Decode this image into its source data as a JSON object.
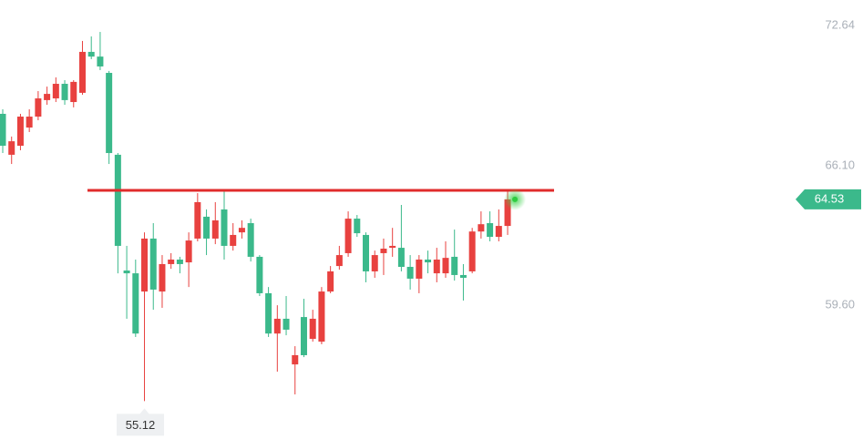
{
  "chart_data": {
    "type": "candlestick",
    "categories": [
      null,
      null,
      null,
      null,
      null,
      null,
      null,
      null,
      null,
      null,
      null,
      null,
      null,
      null,
      null,
      null,
      null,
      null,
      null,
      null,
      null,
      null,
      null,
      null,
      null,
      null,
      null,
      null,
      null,
      null,
      null,
      null,
      null,
      null,
      null,
      null,
      null,
      null,
      null,
      null,
      null,
      null,
      null,
      null,
      null,
      null,
      null,
      null,
      null,
      null,
      null,
      null,
      null,
      null,
      null,
      null,
      null,
      null
    ],
    "open": [
      68.52,
      66.61,
      67.03,
      67.88,
      68.39,
      69.16,
      69.24,
      69.92,
      69.07,
      69.5,
      71.41,
      71.19,
      70.43,
      66.61,
      61.21,
      61.08,
      60.23,
      62.7,
      60.23,
      61.51,
      61.72,
      61.59,
      62.7,
      63.72,
      62.7,
      64.06,
      62.36,
      62.99,
      63.42,
      61.85,
      60.15,
      58.27,
      58.96,
      56.83,
      59.04,
      58.02,
      57.89,
      60.23,
      61.42,
      62.02,
      63.63,
      62.87,
      61.17,
      62.02,
      62.27,
      62.27,
      61.38,
      60.83,
      61.72,
      61.08,
      61.08,
      61.85,
      61.0,
      61.17,
      63.03,
      63.42,
      62.78,
      63.29
    ],
    "high": [
      68.73,
      67.46,
      68.52,
      68.73,
      69.58,
      69.79,
      70.22,
      70.09,
      70.09,
      71.92,
      72.13,
      72.34,
      70.52,
      66.69,
      62.36,
      61.72,
      62.99,
      63.42,
      61.93,
      62.02,
      61.85,
      62.99,
      64.82,
      64.06,
      64.4,
      64.91,
      63.42,
      63.55,
      63.63,
      61.93,
      60.44,
      59.59,
      60.02,
      57.68,
      59.89,
      59.38,
      60.44,
      61.42,
      62.36,
      63.97,
      63.8,
      62.99,
      62.14,
      62.7,
      63.2,
      64.27,
      61.93,
      61.93,
      62.14,
      62.27,
      62.57,
      63.12,
      61.51,
      63.2,
      63.97,
      63.97,
      64.06,
      64.99
    ],
    "low": [
      66.69,
      66.18,
      66.82,
      67.67,
      68.22,
      68.94,
      69.07,
      68.94,
      68.82,
      69.41,
      71.07,
      70.56,
      66.18,
      61.08,
      58.96,
      58.11,
      55.12,
      59.38,
      59.47,
      61.29,
      61.08,
      60.44,
      62.57,
      61.93,
      62.44,
      61.72,
      62.14,
      62.7,
      61.63,
      60.02,
      58.11,
      56.49,
      58.19,
      55.43,
      57.17,
      57.89,
      57.77,
      60.15,
      61.25,
      61.85,
      62.78,
      60.66,
      60.87,
      61.0,
      61.85,
      61.17,
      60.32,
      60.15,
      61.08,
      60.66,
      60.87,
      60.74,
      59.81,
      61.08,
      62.7,
      62.57,
      62.57,
      62.87
    ],
    "close": [
      67.03,
      67.24,
      68.39,
      68.39,
      69.24,
      69.45,
      69.92,
      69.16,
      70.01,
      71.41,
      71.19,
      70.73,
      66.69,
      62.36,
      61.08,
      58.27,
      62.7,
      60.32,
      61.51,
      61.72,
      61.51,
      62.61,
      64.4,
      62.7,
      63.55,
      62.36,
      62.87,
      63.2,
      61.85,
      60.15,
      58.27,
      58.96,
      58.45,
      57.26,
      57.26,
      58.96,
      60.23,
      61.17,
      61.93,
      63.63,
      62.95,
      61.17,
      61.93,
      62.23,
      62.36,
      61.38,
      60.83,
      61.72,
      61.59,
      61.72,
      61.8,
      61.0,
      60.87,
      63.03,
      63.37,
      62.78,
      63.29,
      64.53
    ],
    "up_color": "#e8413f",
    "down_color": "#3bb98b",
    "resistance": 64.95,
    "resistance_color": "#e02b2b",
    "ylim": [
      53.35,
      73.83
    ],
    "yticks": [
      {
        "value": 59.6,
        "label": "59.60"
      },
      {
        "value": 66.1,
        "label": "66.10"
      },
      72.64
    ]
  }
}
